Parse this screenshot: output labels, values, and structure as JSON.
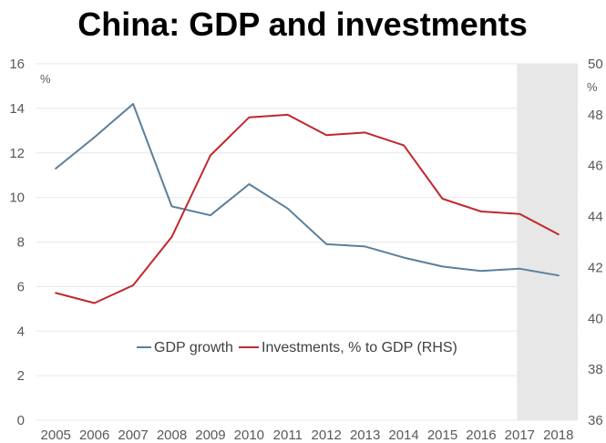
{
  "chart_data": {
    "type": "line",
    "title": "China: GDP and investments",
    "x": [
      2005,
      2006,
      2007,
      2008,
      2009,
      2010,
      2011,
      2012,
      2013,
      2014,
      2015,
      2016,
      2017,
      2018
    ],
    "y_left": {
      "label": "%",
      "range": [
        0,
        16
      ],
      "ticks": [
        0,
        2,
        4,
        6,
        8,
        10,
        12,
        14,
        16
      ]
    },
    "y_right": {
      "label": "%",
      "range": [
        36,
        50
      ],
      "ticks": [
        36,
        38,
        40,
        42,
        44,
        46,
        48,
        50
      ]
    },
    "series": [
      {
        "name": "GDP growth",
        "axis": "left",
        "color": "#5b7f9b",
        "values": [
          11.3,
          12.7,
          14.2,
          9.6,
          9.2,
          10.6,
          9.5,
          7.9,
          7.8,
          7.3,
          6.9,
          6.7,
          6.8,
          6.5
        ]
      },
      {
        "name": "Investments, % to GDP (RHS)",
        "axis": "right",
        "color": "#c1272d",
        "values": [
          41.0,
          40.6,
          41.3,
          43.2,
          46.4,
          47.9,
          48.0,
          47.2,
          47.3,
          46.8,
          44.7,
          44.2,
          44.1,
          43.3
        ]
      }
    ],
    "highlight": {
      "from": 2017,
      "color": "#e7e7e7"
    },
    "grid": true,
    "legend_position": "inside-bottom-center"
  }
}
